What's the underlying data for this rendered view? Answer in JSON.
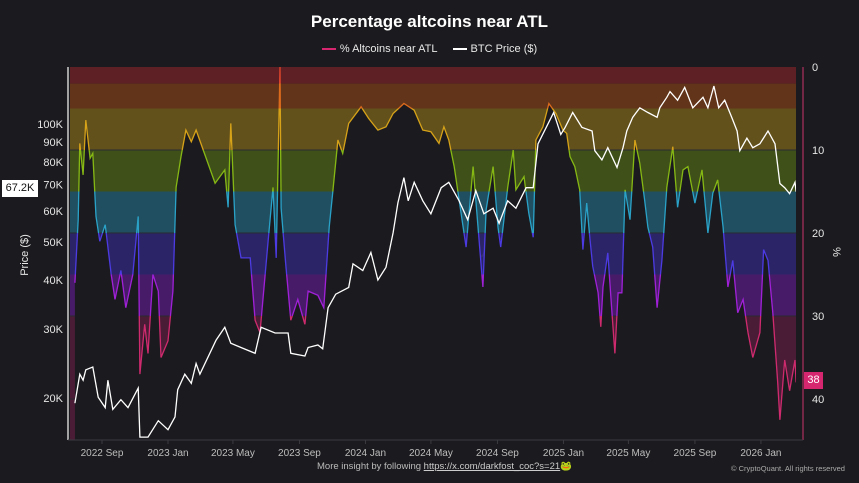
{
  "header": {
    "title": "Percentage altcoins near ATL",
    "legend": [
      {
        "label": "% Altcoins near ATL",
        "color": "#d6266f"
      },
      {
        "label": "BTC Price ($)",
        "color": "#ffffff"
      }
    ]
  },
  "watermark": "CryptoQuant",
  "footer": {
    "text": "More insight by following ",
    "link": "https://x.com/darkfost_coc?s=21",
    "emoji": "🐸",
    "copyright": "© CryptoQuant. All rights reserved"
  },
  "chart_data": {
    "type": "line",
    "title": "Percentage altcoins near ATL",
    "grid": true,
    "legend_position": "top",
    "x_ticks": [
      "2022 Sep",
      "2023 Jan",
      "2023 May",
      "2023 Sep",
      "2024 Jan",
      "2024 May",
      "2024 Sep",
      "2025 Jan",
      "2025 May",
      "2025 Sep",
      "2026 Jan"
    ],
    "x_tick_dates": [
      "2022-09-01",
      "2023-01-01",
      "2023-05-01",
      "2023-09-01",
      "2024-01-01",
      "2024-05-01",
      "2024-09-01",
      "2025-01-01",
      "2025-05-01",
      "2025-09-01",
      "2026-01-01"
    ],
    "y_left": {
      "label": "Price ($)",
      "scale": "log",
      "ticks": [
        "20K",
        "30K",
        "40K",
        "50K",
        "60K",
        "70K",
        "80K",
        "90K",
        "100K"
      ],
      "tick_values": [
        20000,
        30000,
        40000,
        50000,
        60000,
        70000,
        80000,
        90000,
        100000
      ],
      "current_label": "67.2K"
    },
    "y_right": {
      "label": "%",
      "inverted": true,
      "range": [
        0,
        45
      ],
      "ticks": [
        "0",
        "10",
        "20",
        "30",
        "40"
      ],
      "tick_values": [
        0,
        10,
        20,
        30,
        40
      ],
      "current_label": "38"
    },
    "bands": [
      {
        "from": 0,
        "to": 2,
        "color": "#5e1f25",
        "line": "#e0452a"
      },
      {
        "from": 2,
        "to": 5,
        "color": "#623419",
        "line": "#dc6a1c"
      },
      {
        "from": 5,
        "to": 10,
        "color": "#63511c",
        "line": "#d6a218"
      },
      {
        "from": 10,
        "to": 15,
        "color": "#3f5119",
        "line": "#86b814"
      },
      {
        "from": 15,
        "to": 20,
        "color": "#1f4f60",
        "line": "#2aa2c8"
      },
      {
        "from": 20,
        "to": 25,
        "color": "#2b2568",
        "line": "#4c3ae2"
      },
      {
        "from": 25,
        "to": 30,
        "color": "#481b68",
        "line": "#a020d8"
      },
      {
        "from": 30,
        "to": 45,
        "color": "#4a1c36",
        "line": "#d02a6e"
      }
    ],
    "series": [
      {
        "name": "% Altcoins near ATL",
        "axis": "right",
        "points": [
          [
            "2022-07-13",
            26
          ],
          [
            "2022-07-19",
            18.4
          ],
          [
            "2022-07-22",
            9.2
          ],
          [
            "2022-07-28",
            13
          ],
          [
            "2022-08-02",
            6.4
          ],
          [
            "2022-08-10",
            11
          ],
          [
            "2022-08-15",
            10.4
          ],
          [
            "2022-08-21",
            18
          ],
          [
            "2022-08-28",
            21
          ],
          [
            "2022-09-07",
            19
          ],
          [
            "2022-09-18",
            25
          ],
          [
            "2022-09-25",
            28
          ],
          [
            "2022-10-06",
            24.5
          ],
          [
            "2022-10-15",
            29
          ],
          [
            "2022-10-28",
            25
          ],
          [
            "2022-11-07",
            18
          ],
          [
            "2022-11-10",
            37
          ],
          [
            "2022-11-19",
            31
          ],
          [
            "2022-11-25",
            34.5
          ],
          [
            "2022-12-04",
            25
          ],
          [
            "2022-12-14",
            27
          ],
          [
            "2022-12-19",
            35
          ],
          [
            "2023-01-01",
            33
          ],
          [
            "2023-01-10",
            27
          ],
          [
            "2023-01-16",
            14.5
          ],
          [
            "2023-01-25",
            10.8
          ],
          [
            "2023-02-03",
            7.6
          ],
          [
            "2023-02-13",
            9
          ],
          [
            "2023-02-22",
            7.6
          ],
          [
            "2023-03-29",
            14
          ],
          [
            "2023-04-16",
            12.4
          ],
          [
            "2023-04-22",
            16.9
          ],
          [
            "2023-04-27",
            6.8
          ],
          [
            "2023-05-05",
            19
          ],
          [
            "2023-05-16",
            23
          ],
          [
            "2023-06-02",
            23
          ],
          [
            "2023-06-11",
            30.5
          ],
          [
            "2023-06-20",
            32
          ],
          [
            "2023-07-05",
            21
          ],
          [
            "2023-07-14",
            14.5
          ],
          [
            "2023-07-20",
            23
          ],
          [
            "2023-07-27",
            0
          ],
          [
            "2023-07-29",
            17
          ],
          [
            "2023-08-07",
            24
          ],
          [
            "2023-08-16",
            30.5
          ],
          [
            "2023-08-29",
            28
          ],
          [
            "2023-09-11",
            31
          ],
          [
            "2023-09-17",
            27
          ],
          [
            "2023-10-05",
            27.5
          ],
          [
            "2023-10-16",
            29
          ],
          [
            "2023-10-26",
            19.3
          ],
          [
            "2023-11-02",
            14.8
          ],
          [
            "2023-11-11",
            8.8
          ],
          [
            "2023-11-20",
            10.4
          ],
          [
            "2023-12-01",
            6.8
          ],
          [
            "2023-12-24",
            4.8
          ],
          [
            "2024-01-07",
            6.2
          ],
          [
            "2024-01-24",
            7.6
          ],
          [
            "2024-02-08",
            7.2
          ],
          [
            "2024-02-21",
            5.6
          ],
          [
            "2024-03-12",
            4.4
          ],
          [
            "2024-03-31",
            5.2
          ],
          [
            "2024-04-16",
            7.6
          ],
          [
            "2024-05-01",
            7.8
          ],
          [
            "2024-05-16",
            9.2
          ],
          [
            "2024-05-25",
            7.2
          ],
          [
            "2024-06-03",
            8.8
          ],
          [
            "2024-06-13",
            12
          ],
          [
            "2024-06-22",
            16
          ],
          [
            "2024-07-05",
            21.7
          ],
          [
            "2024-07-18",
            12
          ],
          [
            "2024-07-23",
            16
          ],
          [
            "2024-08-05",
            26.5
          ],
          [
            "2024-08-11",
            17.2
          ],
          [
            "2024-08-24",
            12
          ],
          [
            "2024-09-02",
            19.3
          ],
          [
            "2024-09-07",
            21.7
          ],
          [
            "2024-09-20",
            14.5
          ],
          [
            "2024-09-30",
            10
          ],
          [
            "2024-10-05",
            14.8
          ],
          [
            "2024-10-20",
            13.2
          ],
          [
            "2024-10-29",
            17.6
          ],
          [
            "2024-11-06",
            20.5
          ],
          [
            "2024-11-11",
            8.8
          ],
          [
            "2024-11-24",
            7.2
          ],
          [
            "2024-12-05",
            4.4
          ],
          [
            "2024-12-18",
            5.6
          ],
          [
            "2024-12-31",
            7.6
          ],
          [
            "2025-01-07",
            8
          ],
          [
            "2025-01-13",
            10.8
          ],
          [
            "2025-01-22",
            12
          ],
          [
            "2025-01-31",
            14.8
          ],
          [
            "2025-02-06",
            22
          ],
          [
            "2025-02-13",
            16.4
          ],
          [
            "2025-02-19",
            20.8
          ],
          [
            "2025-02-24",
            24
          ],
          [
            "2025-03-06",
            27.2
          ],
          [
            "2025-03-11",
            31.3
          ],
          [
            "2025-03-15",
            26.5
          ],
          [
            "2025-03-24",
            22.4
          ],
          [
            "2025-03-31",
            29
          ],
          [
            "2025-04-06",
            34.5
          ],
          [
            "2025-04-12",
            27.2
          ],
          [
            "2025-04-19",
            27.2
          ],
          [
            "2025-04-25",
            14.8
          ],
          [
            "2025-05-04",
            18.4
          ],
          [
            "2025-05-13",
            8.8
          ],
          [
            "2025-05-22",
            11.6
          ],
          [
            "2025-05-31",
            16
          ],
          [
            "2025-06-06",
            19.3
          ],
          [
            "2025-06-15",
            21.7
          ],
          [
            "2025-06-23",
            29
          ],
          [
            "2025-07-02",
            23.3
          ],
          [
            "2025-07-11",
            14.5
          ],
          [
            "2025-07-22",
            9.6
          ],
          [
            "2025-07-31",
            16.9
          ],
          [
            "2025-08-10",
            12.4
          ],
          [
            "2025-08-19",
            12
          ],
          [
            "2025-09-01",
            16.4
          ],
          [
            "2025-09-14",
            12.4
          ],
          [
            "2025-09-25",
            20
          ],
          [
            "2025-10-04",
            15.2
          ],
          [
            "2025-10-13",
            13.6
          ],
          [
            "2025-10-23",
            19.3
          ],
          [
            "2025-11-01",
            26.5
          ],
          [
            "2025-11-10",
            23.3
          ],
          [
            "2025-11-19",
            29.6
          ],
          [
            "2025-11-29",
            28
          ],
          [
            "2025-12-08",
            32
          ],
          [
            "2025-12-17",
            35
          ],
          [
            "2025-12-30",
            32
          ],
          [
            "2026-01-06",
            22
          ],
          [
            "2026-01-14",
            23.3
          ],
          [
            "2026-01-23",
            29.6
          ],
          [
            "2026-02-01",
            38
          ],
          [
            "2026-02-05",
            42.5
          ],
          [
            "2026-02-14",
            35.3
          ],
          [
            "2026-02-23",
            39
          ],
          [
            "2026-03-05",
            35.3
          ],
          [
            "2026-03-07",
            38
          ]
        ]
      },
      {
        "name": "BTC Price ($)",
        "axis": "left",
        "color": "#ffffff",
        "points": [
          [
            "2022-07-13",
            19400
          ],
          [
            "2022-07-22",
            23000
          ],
          [
            "2022-07-28",
            22200
          ],
          [
            "2022-08-02",
            23600
          ],
          [
            "2022-08-15",
            24000
          ],
          [
            "2022-08-25",
            20100
          ],
          [
            "2022-09-07",
            18900
          ],
          [
            "2022-09-12",
            22200
          ],
          [
            "2022-09-21",
            18700
          ],
          [
            "2022-10-06",
            19800
          ],
          [
            "2022-10-19",
            18900
          ],
          [
            "2022-11-07",
            21200
          ],
          [
            "2022-11-10",
            15900
          ],
          [
            "2022-11-25",
            15900
          ],
          [
            "2022-12-14",
            17500
          ],
          [
            "2023-01-01",
            16600
          ],
          [
            "2023-01-14",
            17900
          ],
          [
            "2023-01-19",
            21000
          ],
          [
            "2023-02-01",
            23000
          ],
          [
            "2023-02-13",
            21800
          ],
          [
            "2023-02-22",
            24500
          ],
          [
            "2023-03-01",
            23000
          ],
          [
            "2023-03-31",
            28100
          ],
          [
            "2023-04-16",
            30300
          ],
          [
            "2023-04-27",
            27600
          ],
          [
            "2023-05-16",
            26900
          ],
          [
            "2023-06-11",
            26000
          ],
          [
            "2023-06-22",
            30300
          ],
          [
            "2023-07-18",
            29300
          ],
          [
            "2023-08-11",
            29300
          ],
          [
            "2023-08-16",
            26000
          ],
          [
            "2023-09-11",
            25600
          ],
          [
            "2023-09-17",
            26900
          ],
          [
            "2023-10-05",
            27300
          ],
          [
            "2023-10-14",
            26700
          ],
          [
            "2023-10-24",
            34000
          ],
          [
            "2023-11-07",
            36800
          ],
          [
            "2023-12-01",
            38300
          ],
          [
            "2023-12-09",
            44000
          ],
          [
            "2023-12-27",
            42300
          ],
          [
            "2024-01-11",
            47000
          ],
          [
            "2024-01-24",
            40000
          ],
          [
            "2024-02-08",
            43100
          ],
          [
            "2024-02-21",
            52800
          ],
          [
            "2024-03-01",
            62900
          ],
          [
            "2024-03-12",
            73000
          ],
          [
            "2024-03-20",
            63700
          ],
          [
            "2024-03-31",
            71000
          ],
          [
            "2024-04-16",
            63700
          ],
          [
            "2024-05-01",
            59000
          ],
          [
            "2024-05-20",
            68800
          ],
          [
            "2024-06-03",
            71000
          ],
          [
            "2024-06-22",
            63700
          ],
          [
            "2024-07-08",
            57000
          ],
          [
            "2024-07-23",
            67600
          ],
          [
            "2024-08-07",
            59000
          ],
          [
            "2024-08-24",
            61000
          ],
          [
            "2024-09-04",
            55800
          ],
          [
            "2024-09-20",
            63700
          ],
          [
            "2024-10-05",
            61000
          ],
          [
            "2024-10-24",
            68800
          ],
          [
            "2024-11-06",
            68800
          ],
          [
            "2024-11-15",
            89000
          ],
          [
            "2024-11-30",
            98000
          ],
          [
            "2024-12-14",
            107000
          ],
          [
            "2024-12-27",
            94000
          ],
          [
            "2025-01-04",
            98000
          ],
          [
            "2025-01-18",
            107000
          ],
          [
            "2025-02-04",
            98000
          ],
          [
            "2025-02-23",
            96000
          ],
          [
            "2025-02-28",
            85500
          ],
          [
            "2025-03-13",
            81000
          ],
          [
            "2025-03-24",
            87000
          ],
          [
            "2025-04-10",
            77500
          ],
          [
            "2025-04-21",
            87000
          ],
          [
            "2025-04-28",
            96000
          ],
          [
            "2025-05-09",
            104000
          ],
          [
            "2025-05-22",
            110000
          ],
          [
            "2025-06-06",
            107000
          ],
          [
            "2025-06-23",
            104000
          ],
          [
            "2025-06-28",
            110000
          ],
          [
            "2025-07-11",
            117000
          ],
          [
            "2025-07-17",
            121000
          ],
          [
            "2025-07-31",
            115000
          ],
          [
            "2025-08-13",
            124000
          ],
          [
            "2025-08-28",
            110000
          ],
          [
            "2025-09-16",
            117000
          ],
          [
            "2025-09-25",
            110000
          ],
          [
            "2025-10-06",
            125000
          ],
          [
            "2025-10-15",
            110000
          ],
          [
            "2025-10-26",
            115000
          ],
          [
            "2025-11-08",
            104000
          ],
          [
            "2025-11-18",
            96000
          ],
          [
            "2025-11-23",
            85500
          ],
          [
            "2025-12-06",
            92000
          ],
          [
            "2025-12-17",
            87000
          ],
          [
            "2025-12-30",
            89000
          ],
          [
            "2026-01-14",
            96000
          ],
          [
            "2026-01-27",
            89000
          ],
          [
            "2026-02-05",
            70500
          ],
          [
            "2026-02-14",
            68800
          ],
          [
            "2026-02-23",
            66400
          ],
          [
            "2026-03-05",
            71000
          ],
          [
            "2026-03-07",
            67200
          ]
        ]
      }
    ]
  }
}
